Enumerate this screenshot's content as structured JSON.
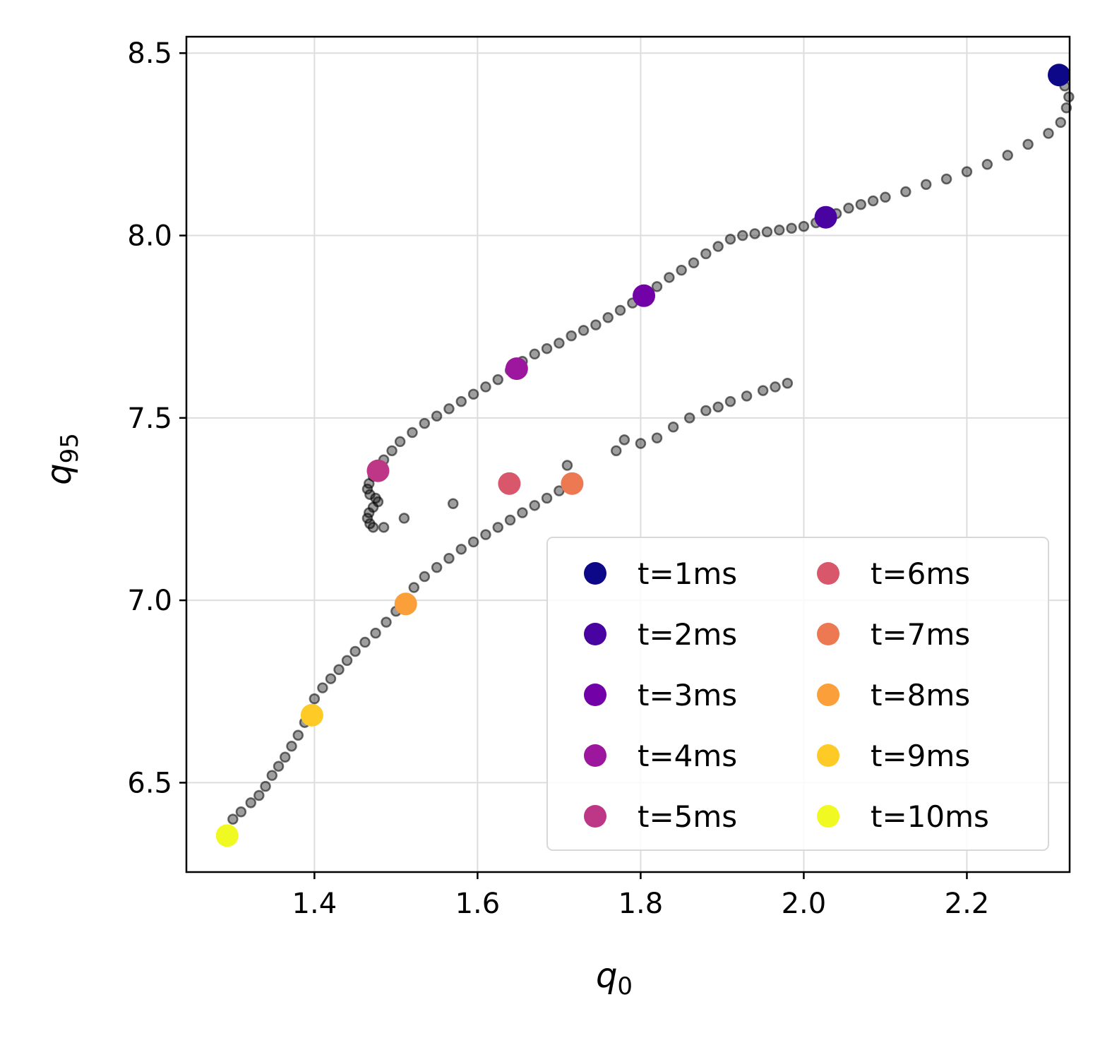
{
  "chart_data": {
    "type": "scatter",
    "title": "",
    "xlabel": {
      "base": "q",
      "sub": "0"
    },
    "ylabel": {
      "base": "q",
      "sub": "95"
    },
    "xlim": [
      1.243,
      2.326
    ],
    "ylim": [
      6.255,
      8.545
    ],
    "x_ticks": [
      1.4,
      1.6,
      1.8,
      2.0,
      2.2
    ],
    "x_tick_labels": [
      "1.4",
      "1.6",
      "1.8",
      "2.0",
      "2.2"
    ],
    "y_ticks": [
      6.5,
      7.0,
      7.5,
      8.0,
      8.5
    ],
    "y_tick_labels": [
      "6.5",
      "7.0",
      "7.5",
      "8.0",
      "8.5"
    ],
    "grid": true,
    "legend_position": "lower-right",
    "legend_columns": 2,
    "trajectory": {
      "color": "#000000",
      "points": [
        [
          2.31,
          8.44
        ],
        [
          2.32,
          8.41
        ],
        [
          2.325,
          8.38
        ],
        [
          2.322,
          8.35
        ],
        [
          2.315,
          8.31
        ],
        [
          2.3,
          8.28
        ],
        [
          2.275,
          8.25
        ],
        [
          2.25,
          8.22
        ],
        [
          2.225,
          8.195
        ],
        [
          2.2,
          8.175
        ],
        [
          2.175,
          8.155
        ],
        [
          2.15,
          8.14
        ],
        [
          2.125,
          8.12
        ],
        [
          2.1,
          8.105
        ],
        [
          2.085,
          8.095
        ],
        [
          2.07,
          8.085
        ],
        [
          2.055,
          8.075
        ],
        [
          2.04,
          8.06
        ],
        [
          2.03,
          8.05
        ],
        [
          2.015,
          8.035
        ],
        [
          2.0,
          8.025
        ],
        [
          1.985,
          8.02
        ],
        [
          1.97,
          8.015
        ],
        [
          1.955,
          8.01
        ],
        [
          1.94,
          8.005
        ],
        [
          1.925,
          8.0
        ],
        [
          1.91,
          7.99
        ],
        [
          1.895,
          7.97
        ],
        [
          1.88,
          7.95
        ],
        [
          1.865,
          7.925
        ],
        [
          1.85,
          7.905
        ],
        [
          1.835,
          7.885
        ],
        [
          1.82,
          7.86
        ],
        [
          1.805,
          7.84
        ],
        [
          1.79,
          7.815
        ],
        [
          1.775,
          7.795
        ],
        [
          1.76,
          7.775
        ],
        [
          1.745,
          7.755
        ],
        [
          1.73,
          7.74
        ],
        [
          1.715,
          7.725
        ],
        [
          1.7,
          7.705
        ],
        [
          1.685,
          7.69
        ],
        [
          1.67,
          7.675
        ],
        [
          1.655,
          7.655
        ],
        [
          1.64,
          7.63
        ],
        [
          1.625,
          7.605
        ],
        [
          1.61,
          7.585
        ],
        [
          1.595,
          7.565
        ],
        [
          1.58,
          7.545
        ],
        [
          1.565,
          7.525
        ],
        [
          1.55,
          7.505
        ],
        [
          1.535,
          7.485
        ],
        [
          1.52,
          7.46
        ],
        [
          1.505,
          7.435
        ],
        [
          1.495,
          7.41
        ],
        [
          1.485,
          7.385
        ],
        [
          1.478,
          7.36
        ],
        [
          1.472,
          7.34
        ],
        [
          1.467,
          7.32
        ],
        [
          1.465,
          7.305
        ],
        [
          1.468,
          7.29
        ],
        [
          1.475,
          7.28
        ],
        [
          1.478,
          7.27
        ],
        [
          1.472,
          7.255
        ],
        [
          1.467,
          7.24
        ],
        [
          1.465,
          7.225
        ],
        [
          1.468,
          7.21
        ],
        [
          1.472,
          7.2
        ],
        [
          1.485,
          7.2
        ],
        [
          1.51,
          7.225
        ],
        [
          1.57,
          7.265
        ],
        [
          1.64,
          7.32
        ],
        [
          1.71,
          7.37
        ],
        [
          1.77,
          7.41
        ],
        [
          1.78,
          7.44
        ],
        [
          1.8,
          7.43
        ],
        [
          1.82,
          7.445
        ],
        [
          1.84,
          7.475
        ],
        [
          1.86,
          7.5
        ],
        [
          1.88,
          7.52
        ],
        [
          1.895,
          7.53
        ],
        [
          1.91,
          7.545
        ],
        [
          1.93,
          7.56
        ],
        [
          1.95,
          7.575
        ],
        [
          1.965,
          7.585
        ],
        [
          1.98,
          7.595
        ],
        [
          1.7,
          7.3
        ],
        [
          1.685,
          7.28
        ],
        [
          1.67,
          7.26
        ],
        [
          1.655,
          7.24
        ],
        [
          1.64,
          7.22
        ],
        [
          1.625,
          7.2
        ],
        [
          1.61,
          7.18
        ],
        [
          1.595,
          7.16
        ],
        [
          1.58,
          7.14
        ],
        [
          1.565,
          7.115
        ],
        [
          1.55,
          7.09
        ],
        [
          1.535,
          7.065
        ],
        [
          1.522,
          7.035
        ],
        [
          1.512,
          7.0
        ],
        [
          1.5,
          6.97
        ],
        [
          1.488,
          6.94
        ],
        [
          1.475,
          6.91
        ],
        [
          1.462,
          6.885
        ],
        [
          1.45,
          6.86
        ],
        [
          1.44,
          6.835
        ],
        [
          1.43,
          6.81
        ],
        [
          1.42,
          6.785
        ],
        [
          1.41,
          6.76
        ],
        [
          1.4,
          6.73
        ],
        [
          1.395,
          6.7
        ],
        [
          1.388,
          6.665
        ],
        [
          1.38,
          6.63
        ],
        [
          1.372,
          6.6
        ],
        [
          1.364,
          6.57
        ],
        [
          1.356,
          6.545
        ],
        [
          1.348,
          6.52
        ],
        [
          1.34,
          6.49
        ],
        [
          1.332,
          6.465
        ],
        [
          1.322,
          6.445
        ],
        [
          1.31,
          6.42
        ],
        [
          1.3,
          6.4
        ],
        [
          1.29,
          6.36
        ]
      ]
    },
    "series": [
      {
        "name": "t=1ms",
        "color": "#0d0887",
        "x": [
          2.313
        ],
        "y": [
          8.44
        ]
      },
      {
        "name": "t=2ms",
        "color": "#4903a0",
        "x": [
          2.027
        ],
        "y": [
          8.05
        ]
      },
      {
        "name": "t=3ms",
        "color": "#7201a8",
        "x": [
          1.804
        ],
        "y": [
          7.835
        ]
      },
      {
        "name": "t=4ms",
        "color": "#9c179e",
        "x": [
          1.648
        ],
        "y": [
          7.635
        ]
      },
      {
        "name": "t=5ms",
        "color": "#bd3786",
        "x": [
          1.478
        ],
        "y": [
          7.355
        ]
      },
      {
        "name": "t=6ms",
        "color": "#d8576b",
        "x": [
          1.639
        ],
        "y": [
          7.32
        ]
      },
      {
        "name": "t=7ms",
        "color": "#ed7953",
        "x": [
          1.716
        ],
        "y": [
          7.32
        ]
      },
      {
        "name": "t=8ms",
        "color": "#fb9f3a",
        "x": [
          1.512
        ],
        "y": [
          6.99
        ]
      },
      {
        "name": "t=9ms",
        "color": "#fdca26",
        "x": [
          1.397
        ],
        "y": [
          6.685
        ]
      },
      {
        "name": "t=10ms",
        "color": "#f0f921",
        "x": [
          1.293
        ],
        "y": [
          6.355
        ]
      }
    ]
  }
}
